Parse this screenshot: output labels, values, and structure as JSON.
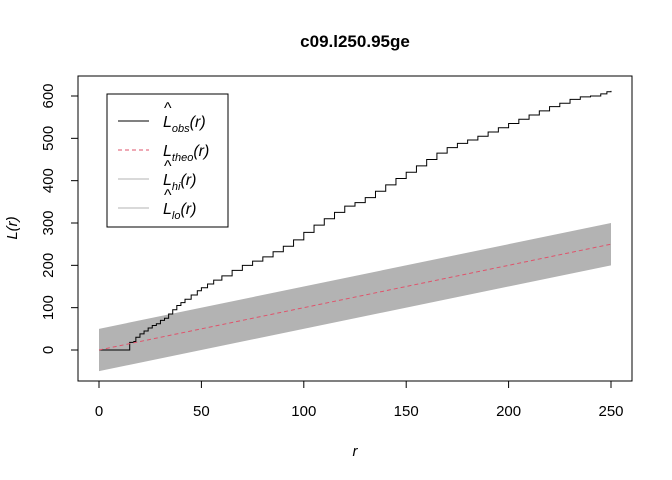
{
  "chart_data": {
    "type": "line",
    "title": "c09.l250.95ge",
    "xlabel": "r",
    "ylabel": "L(r)",
    "xlim": [
      0,
      250
    ],
    "ylim": [
      -50,
      620
    ],
    "xticks": [
      0,
      50,
      100,
      150,
      200,
      250
    ],
    "yticks": [
      0,
      100,
      200,
      300,
      400,
      500,
      600
    ],
    "grid": false,
    "legend_position": "top-left",
    "legend": [
      {
        "base": "L",
        "hat": true,
        "sub": "obs",
        "arg": "(r)",
        "color": "#000000",
        "dash": "solid"
      },
      {
        "base": "L",
        "hat": false,
        "sub": "theo",
        "arg": "(r)",
        "color": "#DF536B",
        "dash": "dashed"
      },
      {
        "base": "L",
        "hat": true,
        "sub": "hi",
        "arg": "(r)",
        "color": "#b3b3b3",
        "dash": "solid"
      },
      {
        "base": "L",
        "hat": true,
        "sub": "lo",
        "arg": "(r)",
        "color": "#b3b3b3",
        "dash": "solid"
      }
    ],
    "series": [
      {
        "key": "obs",
        "style": "step",
        "color": "#000000",
        "x": [
          0,
          14,
          15,
          17,
          18,
          20,
          22,
          24,
          26,
          28,
          30,
          32,
          34,
          36,
          38,
          40,
          42,
          45,
          48,
          50,
          53,
          56,
          60,
          65,
          70,
          75,
          80,
          85,
          90,
          95,
          100,
          105,
          110,
          115,
          120,
          125,
          130,
          135,
          140,
          145,
          150,
          155,
          160,
          165,
          170,
          175,
          180,
          185,
          190,
          195,
          200,
          205,
          210,
          215,
          220,
          225,
          230,
          235,
          240,
          245,
          248,
          250
        ],
        "y": [
          0,
          0,
          18,
          20,
          30,
          38,
          45,
          52,
          58,
          62,
          70,
          75,
          85,
          95,
          105,
          112,
          120,
          130,
          140,
          147,
          156,
          165,
          175,
          188,
          200,
          210,
          220,
          232,
          245,
          260,
          278,
          295,
          310,
          325,
          340,
          348,
          360,
          375,
          390,
          405,
          420,
          435,
          450,
          465,
          478,
          488,
          496,
          505,
          515,
          525,
          535,
          545,
          555,
          565,
          575,
          583,
          592,
          598,
          600,
          605,
          610,
          612
        ]
      },
      {
        "key": "theo",
        "style": "line",
        "color": "#DF536B",
        "x": [
          0,
          250
        ],
        "y": [
          0,
          250
        ]
      }
    ],
    "band": {
      "color": "#b3b3b3",
      "x": [
        0,
        250
      ],
      "lo": [
        -50,
        200
      ],
      "hi": [
        50,
        300
      ]
    }
  }
}
